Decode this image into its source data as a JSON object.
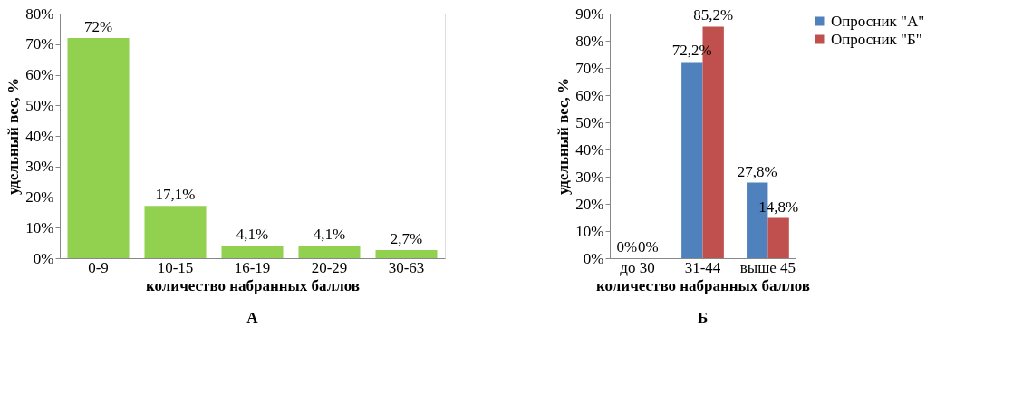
{
  "chart_data": [
    {
      "type": "bar",
      "title": "А",
      "xlabel": "количество набранных баллов",
      "ylabel": "удельный вес, %",
      "categories": [
        "0-9",
        "10-15",
        "16-19",
        "20-29",
        "30-63"
      ],
      "series": [
        {
          "color": "#92d050",
          "values": [
            72,
            17.1,
            4.1,
            4.1,
            2.7
          ],
          "value_labels": [
            "72%",
            "17,1%",
            "4,1%",
            "4,1%",
            "2,7%"
          ]
        }
      ],
      "ylim": [
        0,
        80
      ],
      "yticks": [
        {
          "value": 0,
          "label": "0%"
        },
        {
          "value": 10,
          "label": "10%"
        },
        {
          "value": 20,
          "label": "20%"
        },
        {
          "value": 30,
          "label": "30%"
        },
        {
          "value": 40,
          "label": "40%"
        },
        {
          "value": 50,
          "label": "50%"
        },
        {
          "value": 60,
          "label": "60%"
        },
        {
          "value": 70,
          "label": "70%"
        },
        {
          "value": 80,
          "label": "80%"
        }
      ],
      "grid": false,
      "legend": false
    },
    {
      "type": "bar",
      "title": "Б",
      "xlabel": "количество набранных баллов",
      "ylabel": "удельный вес, %",
      "categories": [
        "до 30",
        "31-44",
        "выше 45"
      ],
      "series": [
        {
          "name": "Опросник \"А\"",
          "color": "#4f81bd",
          "values": [
            0,
            72.2,
            27.8
          ],
          "value_labels": [
            "0%",
            "72,2%",
            "27,8%"
          ]
        },
        {
          "name": "Опросник \"Б\"",
          "color": "#c0504d",
          "values": [
            0,
            85.2,
            14.8
          ],
          "value_labels": [
            "0%",
            "85,2%",
            "14,8%"
          ]
        }
      ],
      "ylim": [
        0,
        90
      ],
      "yticks": [
        {
          "value": 0,
          "label": "0%"
        },
        {
          "value": 10,
          "label": "10%"
        },
        {
          "value": 20,
          "label": "20%"
        },
        {
          "value": 30,
          "label": "30%"
        },
        {
          "value": 40,
          "label": "40%"
        },
        {
          "value": 50,
          "label": "50%"
        },
        {
          "value": 60,
          "label": "60%"
        },
        {
          "value": 70,
          "label": "70%"
        },
        {
          "value": 80,
          "label": "80%"
        },
        {
          "value": 90,
          "label": "90%"
        }
      ],
      "grid": false,
      "legend": "right"
    }
  ]
}
